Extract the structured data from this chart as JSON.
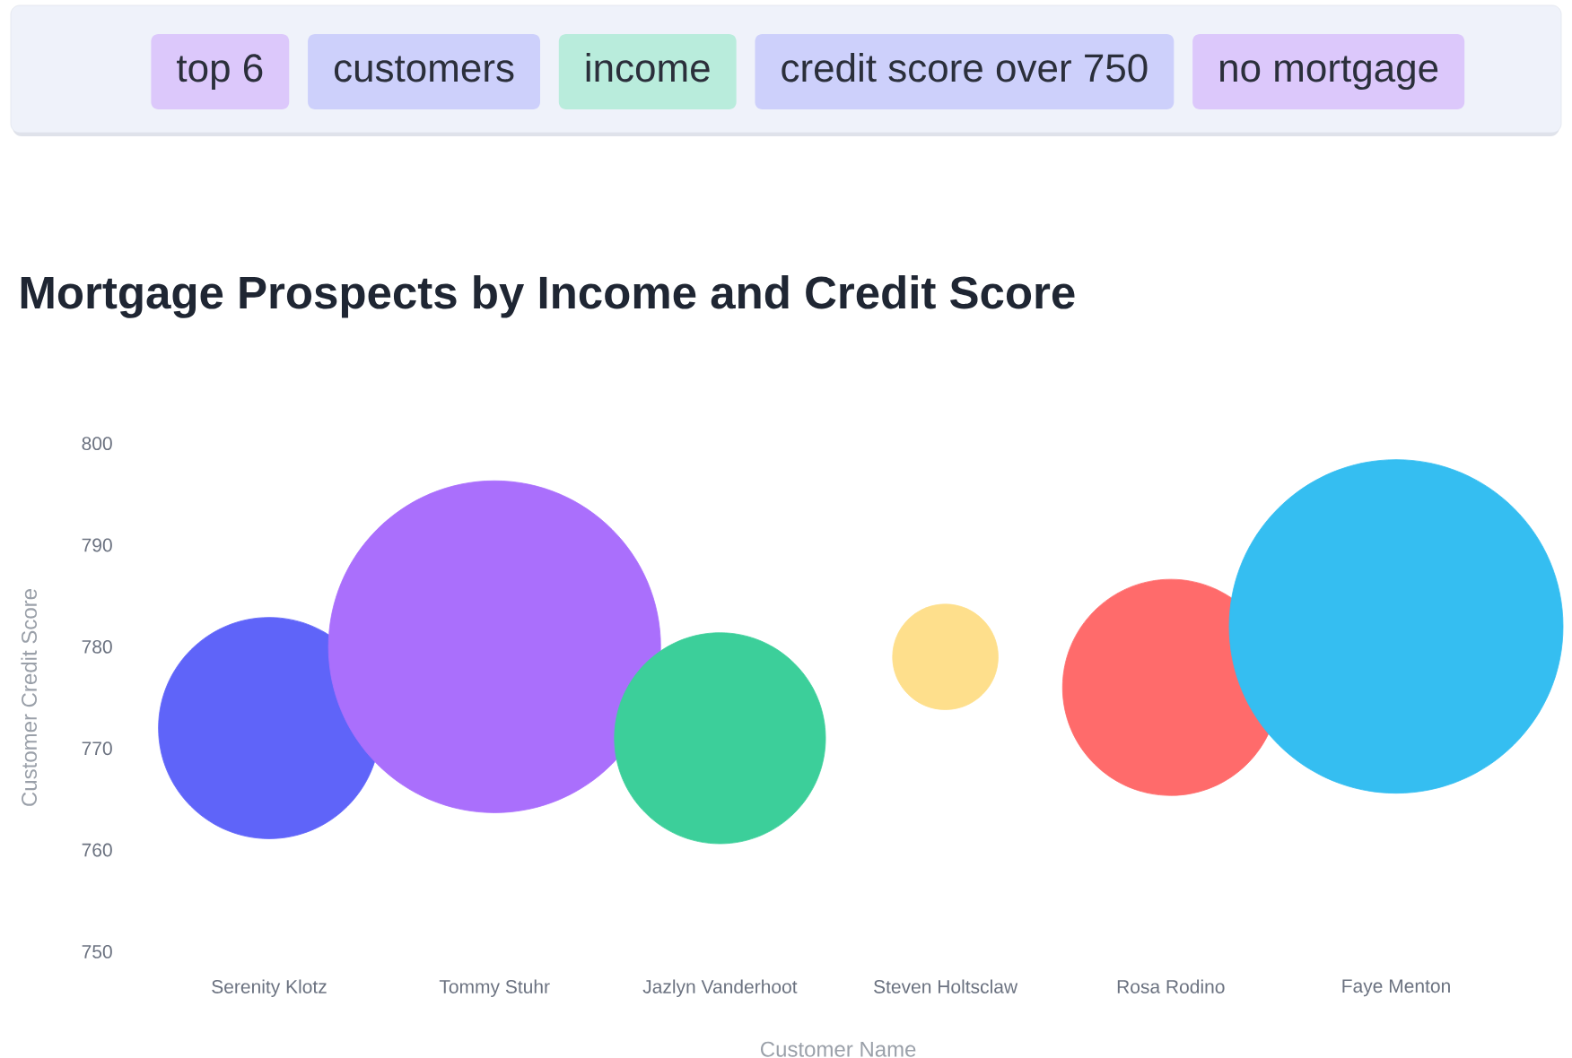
{
  "chart_data": {
    "type": "bubble",
    "title": "Mortgage Prospects by Income and Credit Score",
    "annotations": [
      "top 6",
      "customers",
      "income",
      "credit score over 750",
      "no mortgage"
    ],
    "xlabel": "Customer Name",
    "ylabel": "Customer Credit Score",
    "categories": [
      "Serenity Klotz",
      "Tommy Stuhr",
      "Jazlyn Vanderhoot",
      "Steven Holtsclaw",
      "Rosa Rodino",
      "Faye Menton"
    ],
    "values": [
      772,
      780,
      771,
      779,
      776,
      782
    ],
    "sizes": [
      0.44,
      0.99,
      0.4,
      0.1,
      0.42,
      1
    ],
    "colors": [
      "#5f64f9",
      "#aa6ffc",
      "#3ccf9a",
      "#fedf8c",
      "#ff6b6b",
      "#35bef1"
    ],
    "ylim": [
      750,
      800
    ],
    "yticks": [
      750,
      760,
      770,
      780,
      790,
      800
    ]
  }
}
